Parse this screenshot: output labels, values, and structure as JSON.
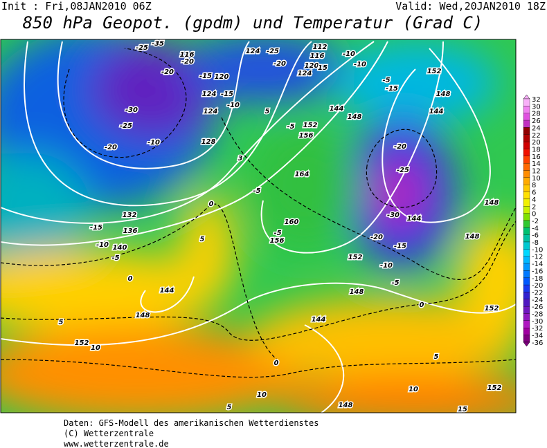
{
  "header": {
    "init": "Init : Fri,08JAN2010 06Z",
    "valid": "Valid: Wed,20JAN2010 18Z",
    "title": "850 hPa Geopot. (gpdm) und Temperatur (Grad C)"
  },
  "colorbar": {
    "labels": [
      "32",
      "30",
      "28",
      "26",
      "24",
      "22",
      "20",
      "18",
      "16",
      "14",
      "12",
      "10",
      "8",
      "6",
      "4",
      "2",
      "0",
      "-2",
      "-4",
      "-6",
      "-8",
      "-10",
      "-12",
      "-14",
      "-16",
      "-18",
      "-20",
      "-22",
      "-24",
      "-26",
      "-28",
      "-30",
      "-32",
      "-34",
      "-36"
    ]
  },
  "map": {
    "labels": [
      "-35",
      "-25",
      "116",
      "-20",
      "-20",
      "-15",
      "120",
      "124",
      "-25",
      "112",
      "116",
      "-20",
      "-10",
      "120",
      "124",
      "-10",
      "15",
      "-5",
      "-15",
      "152",
      "148",
      "144",
      "124",
      "-15",
      "-10",
      "124",
      "144",
      "148",
      "-5",
      "152",
      "156",
      "-30",
      "-25",
      "-10",
      "-20",
      "128",
      "-20",
      "-25",
      "-30",
      "144",
      "164",
      "-5",
      "132",
      "-15",
      "136",
      "-10",
      "140",
      "-5",
      "0",
      "5",
      "-5",
      "156",
      "160",
      "152",
      "-20",
      "-15",
      "148",
      "148",
      "-10",
      "-5",
      "0",
      "144",
      "148",
      "148",
      "5",
      "144",
      "0",
      "152",
      "152",
      "10",
      "0",
      "5",
      "10",
      "152",
      "10",
      "5",
      "148",
      "15",
      "5",
      "3"
    ]
  },
  "footer": {
    "lines": [
      "Daten: GFS-Modell des amerikanischen Wetterdienstes",
      "(C) Wetterzentrale",
      "www.wetterzentrale.de"
    ]
  }
}
